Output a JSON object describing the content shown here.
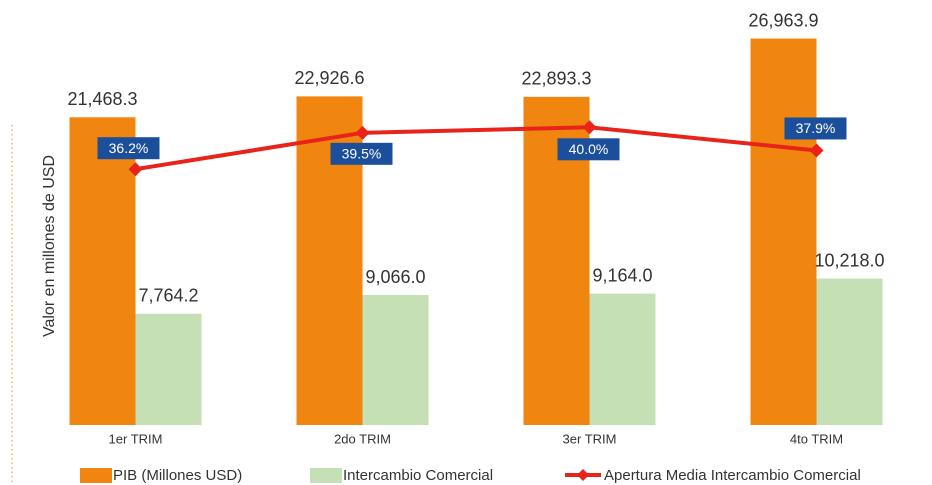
{
  "chart_data": {
    "type": "bar",
    "y_label": "Valor en millones de USD",
    "categories": [
      "1er TRIM",
      "2do TRIM",
      "3er TRIM",
      "4to TRIM"
    ],
    "series": [
      {
        "name": "PIB (Millones USD)",
        "color": "#f0860f",
        "values": [
          21468.3,
          22926.6,
          22893.3,
          26963.9
        ],
        "value_labels": [
          "21,468.3",
          "22,926.6",
          "22,893.3",
          "26,963.9"
        ]
      },
      {
        "name": "Intercambio Comercial",
        "color": "#c5e0b4",
        "values": [
          7764.2,
          9066.0,
          9164.0,
          10218.0
        ],
        "value_labels": [
          "7,764.2",
          "9,066.0",
          "9,164.0",
          "10,218.0"
        ]
      },
      {
        "name": "Apertura Media Intercambio Comercial",
        "type": "line",
        "axis": "y2",
        "color": "#e8231a",
        "label_color": "#1b4f9b",
        "values": [
          36.2,
          39.5,
          40.0,
          37.9
        ],
        "value_labels": [
          "36.2%",
          "39.5%",
          "40.0%",
          "37.9%"
        ]
      }
    ],
    "ylim": [
      0,
      30000
    ],
    "y2lim": [
      13,
      52
    ]
  }
}
